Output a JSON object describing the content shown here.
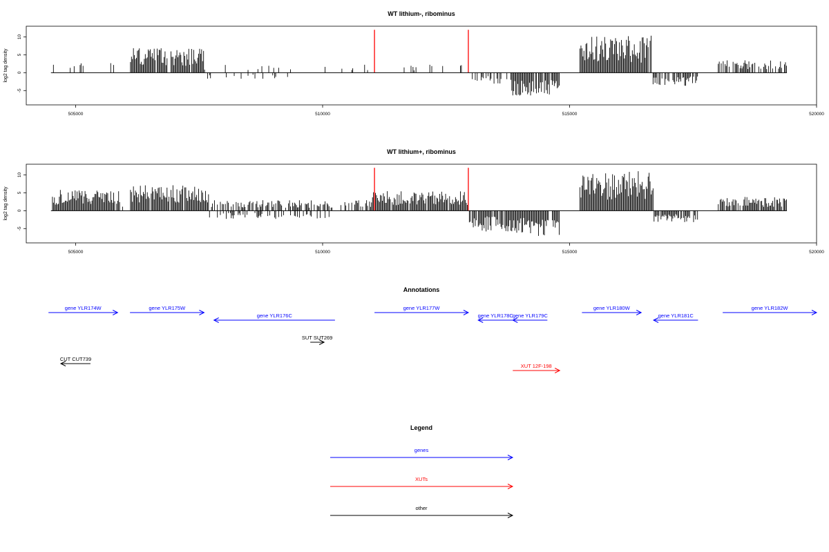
{
  "chart_data": [
    {
      "type": "bar",
      "title": "WT lithium-, ribominus",
      "ylabel": "log2 tag density",
      "xlim": [
        504000,
        520000
      ],
      "ylim": [
        -9,
        13
      ],
      "xticks": [
        505000,
        510000,
        515000,
        520000
      ],
      "yticks": [
        -5,
        0,
        5,
        10
      ],
      "marker_lines": [
        511050,
        512950
      ],
      "marker_color": "#ff0000",
      "x_range": [
        504500,
        519400
      ],
      "bin_size": 20,
      "positive_regions": [
        {
          "from": 504500,
          "to": 505800,
          "level": 2.2,
          "density": 0.15
        },
        {
          "from": 506100,
          "to": 507600,
          "level": 5.5,
          "density": 0.95
        },
        {
          "from": 507600,
          "to": 512950,
          "level": 1.8,
          "density": 0.08
        },
        {
          "from": 515200,
          "to": 516650,
          "level": 8.0,
          "density": 0.98
        },
        {
          "from": 518000,
          "to": 519400,
          "level": 2.8,
          "density": 0.6
        }
      ],
      "negative_regions": [
        {
          "from": 507600,
          "to": 509500,
          "level": -1.3,
          "density": 0.15
        },
        {
          "from": 512950,
          "to": 513800,
          "level": -2.5,
          "density": 0.4
        },
        {
          "from": 513800,
          "to": 514800,
          "level": -5.0,
          "density": 0.95
        },
        {
          "from": 516650,
          "to": 517600,
          "level": -3.0,
          "density": 0.75
        }
      ]
    },
    {
      "type": "bar",
      "title": "WT lithium+, ribominus",
      "ylabel": "log2 tag density",
      "xlim": [
        504000,
        520000
      ],
      "ylim": [
        -9,
        13
      ],
      "xticks": [
        505000,
        510000,
        515000,
        520000
      ],
      "yticks": [
        -5,
        0,
        5,
        10
      ],
      "marker_lines": [
        511050,
        512950
      ],
      "marker_color": "#ff0000",
      "x_range": [
        504500,
        519400
      ],
      "bin_size": 20,
      "positive_regions": [
        {
          "from": 504500,
          "to": 505900,
          "level": 4.5,
          "density": 0.95
        },
        {
          "from": 505900,
          "to": 506100,
          "level": 1.5,
          "density": 0.3
        },
        {
          "from": 506100,
          "to": 507700,
          "level": 5.5,
          "density": 0.95
        },
        {
          "from": 507700,
          "to": 511000,
          "level": 2.3,
          "density": 0.55
        },
        {
          "from": 511000,
          "to": 512950,
          "level": 4.2,
          "density": 0.95
        },
        {
          "from": 515200,
          "to": 516700,
          "level": 8.5,
          "density": 0.98
        },
        {
          "from": 518000,
          "to": 519400,
          "level": 3.0,
          "density": 0.9
        }
      ],
      "negative_regions": [
        {
          "from": 507700,
          "to": 510200,
          "level": -1.8,
          "density": 0.35
        },
        {
          "from": 512950,
          "to": 513700,
          "level": -4.5,
          "density": 0.9
        },
        {
          "from": 513700,
          "to": 514800,
          "level": -5.5,
          "density": 0.95
        },
        {
          "from": 516700,
          "to": 517600,
          "level": -2.5,
          "density": 0.85
        }
      ]
    }
  ],
  "annotations": {
    "title": "Annotations",
    "features": [
      {
        "label": "gene YLR174W",
        "start": 504450,
        "end": 505850,
        "strand": "+",
        "row": 0,
        "type": "gene"
      },
      {
        "label": "gene YLR175W",
        "start": 506100,
        "end": 507600,
        "strand": "+",
        "row": 0,
        "type": "gene"
      },
      {
        "label": "gene YLR176C",
        "start": 507800,
        "end": 510250,
        "strand": "-",
        "row": 1,
        "type": "gene"
      },
      {
        "label": "gene YLR177W",
        "start": 511050,
        "end": 512950,
        "strand": "+",
        "row": 0,
        "type": "gene"
      },
      {
        "label": "gene YLR178C",
        "start": 513150,
        "end": 513850,
        "strand": "-",
        "row": 1,
        "type": "gene"
      },
      {
        "label": "gene YLR179C",
        "start": 513850,
        "end": 514550,
        "strand": "-",
        "row": 1,
        "type": "gene"
      },
      {
        "label": "gene YLR180W",
        "start": 515250,
        "end": 516450,
        "strand": "+",
        "row": 0,
        "type": "gene"
      },
      {
        "label": "gene YLR181C",
        "start": 516700,
        "end": 517600,
        "strand": "-",
        "row": 1,
        "type": "gene"
      },
      {
        "label": "gene YLR182W",
        "start": 518100,
        "end": 520200,
        "strand": "+",
        "row": 0,
        "type": "gene"
      },
      {
        "label": "SUT SUT269",
        "start": 509750,
        "end": 510030,
        "strand": "+",
        "row": 2,
        "type": "other"
      },
      {
        "label": "CUT CUT739",
        "start": 504700,
        "end": 505300,
        "strand": "-",
        "row": 3,
        "type": "other"
      },
      {
        "label": "XUT 12F-198",
        "start": 513850,
        "end": 514800,
        "strand": "+",
        "row": 4,
        "type": "xut"
      }
    ]
  },
  "legend": {
    "title": "Legend",
    "entries": [
      {
        "label": "genes",
        "color": "#0000ff"
      },
      {
        "label": "XUTs",
        "color": "#ff0000"
      },
      {
        "label": "other",
        "color": "#000000"
      }
    ]
  },
  "colors": {
    "gene": "#0000ff",
    "xut": "#ff0000",
    "other": "#000000"
  }
}
